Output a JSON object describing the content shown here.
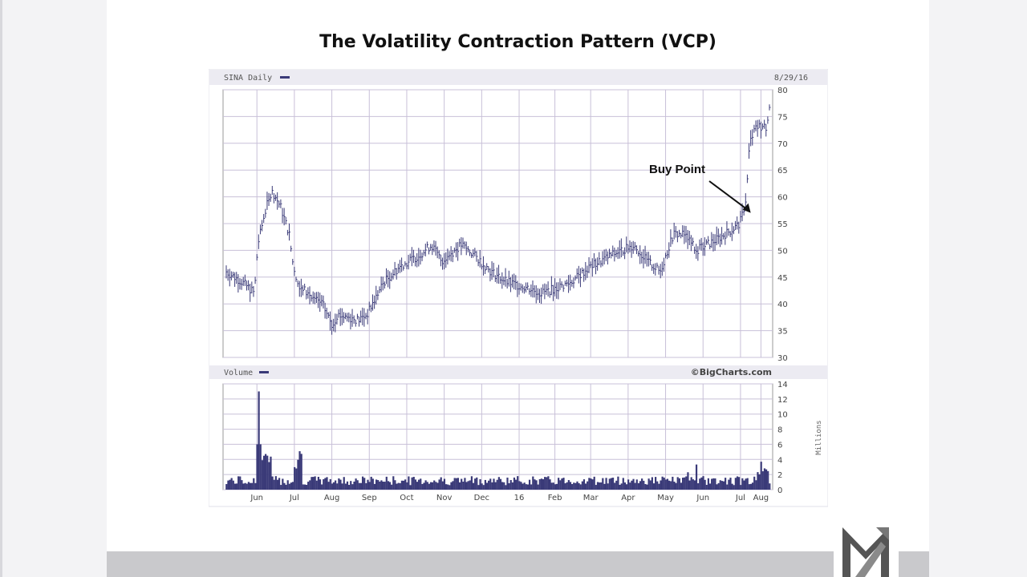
{
  "slide": {
    "title": "The Volatility Contraction Pattern (VCP)"
  },
  "chart_data": {
    "type": "bar",
    "price_panel": {
      "label": "SINA Daily",
      "date": "8/29/16",
      "ylim": [
        30,
        80
      ],
      "yticks": [
        30,
        35,
        40,
        45,
        50,
        55,
        60,
        65,
        70,
        75,
        80
      ],
      "series": {
        "name": "SINA Daily",
        "type": "ohlc",
        "monthly_close": [
          {
            "month": "Jun",
            "value": 54
          },
          {
            "month": "Jul",
            "value": 44
          },
          {
            "month": "Aug",
            "value": 39
          },
          {
            "month": "Sep",
            "value": 38
          },
          {
            "month": "Oct",
            "value": 43
          },
          {
            "month": "Nov",
            "value": 50
          },
          {
            "month": "Dec",
            "value": 49
          },
          {
            "month": "16",
            "value": 46
          },
          {
            "month": "Feb",
            "value": 43
          },
          {
            "month": "Mar",
            "value": 45
          },
          {
            "month": "Apr",
            "value": 49
          },
          {
            "month": "May",
            "value": 48
          },
          {
            "month": "Jun",
            "value": 52
          },
          {
            "month": "Jul",
            "value": 52
          },
          {
            "month": "Aug",
            "value": 73
          }
        ]
      }
    },
    "volume_panel": {
      "label": "Volume",
      "credit": "©BigCharts.com",
      "unit": "Millions",
      "ylim": [
        0,
        14
      ],
      "yticks": [
        0,
        2,
        4,
        6,
        8,
        10,
        12,
        14
      ]
    },
    "xlabels": [
      "Jun",
      "Jul",
      "Aug",
      "Sep",
      "Oct",
      "Nov",
      "Dec",
      "16",
      "Feb",
      "Mar",
      "Apr",
      "May",
      "Jun",
      "Jul",
      "Aug"
    ],
    "annotation": {
      "text": "Buy Point",
      "date_index": 308,
      "price": 57
    }
  },
  "colors": {
    "bars": "#3a3a78",
    "grid": "#c8c0d8",
    "header": "#ecebf2"
  }
}
